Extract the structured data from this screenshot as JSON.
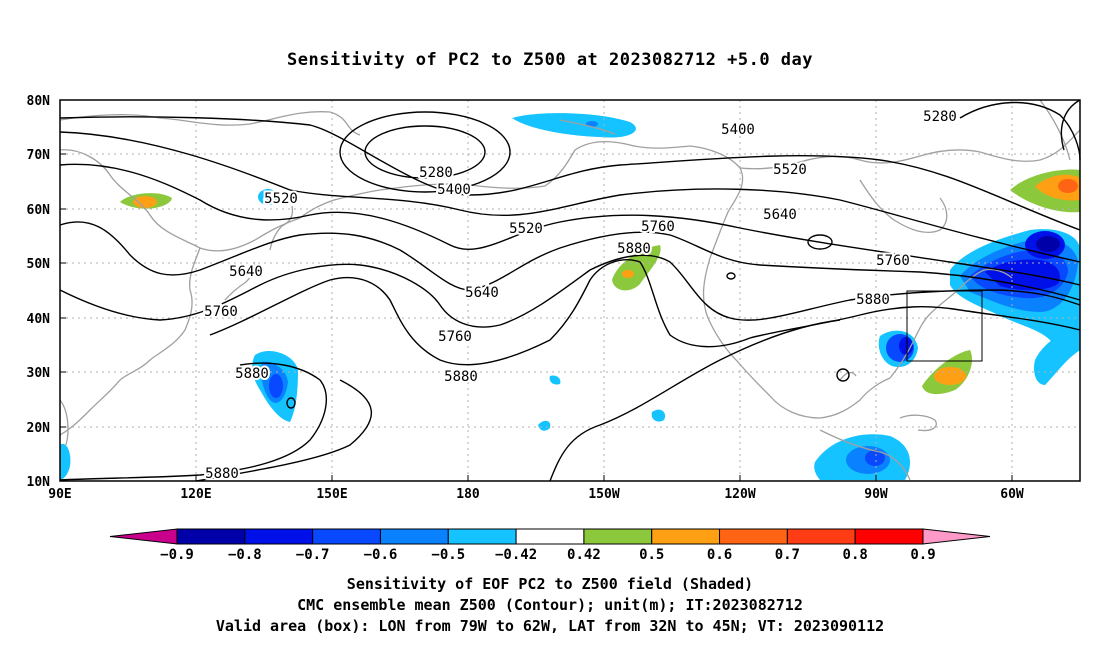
{
  "title": "Sensitivity of PC2 to Z500 at 2023082712 +5.0 day",
  "map": {
    "lat_labels": [
      "80N",
      "70N",
      "60N",
      "50N",
      "40N",
      "30N",
      "20N",
      "10N"
    ],
    "lon_labels": [
      "90E",
      "120E",
      "150E",
      "180",
      "150W",
      "120W",
      "90W",
      "60W"
    ],
    "contours": [
      {
        "label": "5280",
        "pos": "left-upper"
      },
      {
        "label": "5400",
        "pos": "left-upper"
      },
      {
        "label": "5520",
        "pos": "left-mid"
      },
      {
        "label": "5520",
        "pos": "center"
      },
      {
        "label": "5640",
        "pos": "left-low"
      },
      {
        "label": "5640",
        "pos": "center-low"
      },
      {
        "label": "5760",
        "pos": "left"
      },
      {
        "label": "5760",
        "pos": "center"
      },
      {
        "label": "5880",
        "pos": "left"
      },
      {
        "label": "5880",
        "pos": "center"
      },
      {
        "label": "5880",
        "pos": "bottom-left"
      },
      {
        "label": "5760",
        "pos": "center-right"
      },
      {
        "label": "5880",
        "pos": "center-upper"
      },
      {
        "label": "5400",
        "pos": "right-upper"
      },
      {
        "label": "5520",
        "pos": "right-upper"
      },
      {
        "label": "5640",
        "pos": "right"
      },
      {
        "label": "5760",
        "pos": "right"
      },
      {
        "label": "5880",
        "pos": "right"
      },
      {
        "label": "5280",
        "pos": "far-right"
      }
    ],
    "colors": {
      "frame": "#000000",
      "coast": "#a0a0a0",
      "grid": "#b0b0b0"
    }
  },
  "colorbar": {
    "labels": [
      "−0.9",
      "−0.8",
      "−0.7",
      "−0.6",
      "−0.5",
      "−0.42",
      "0.42",
      "0.5",
      "0.6",
      "0.7",
      "0.8",
      "0.9"
    ],
    "colors": [
      "#c8008c",
      "#0000a8",
      "#0010e8",
      "#0848ff",
      "#0a82ff",
      "#14c3ff",
      "#ffffff",
      "#8cc83c",
      "#ffa014",
      "#ff6414",
      "#ff3c14",
      "#ff0000",
      "#ff9ac8"
    ]
  },
  "captions": [
    "Sensitivity of EOF PC2 to Z500 field (Shaded)",
    "CMC ensemble mean Z500 (Contour); unit(m); IT:2023082712",
    "Valid area (box): LON from 79W to 62W, LAT from 32N to 45N; VT: 2023090112"
  ]
}
